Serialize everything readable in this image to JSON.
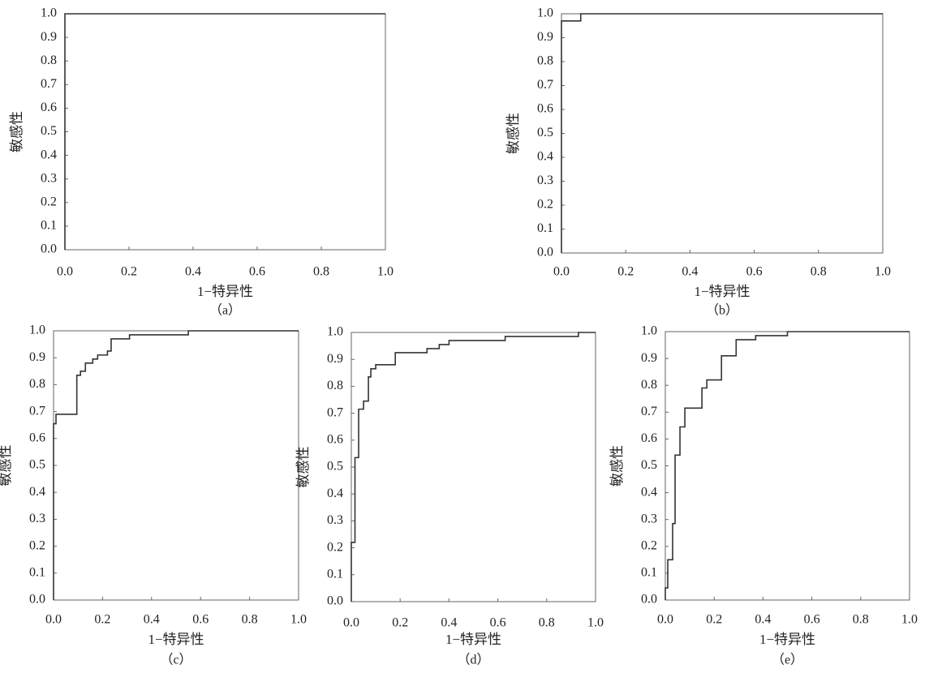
{
  "chart_data": [
    {
      "type": "line",
      "xlabel": "1−特异性",
      "ylabel": "敏感性",
      "caption": "（a）",
      "color": "#333333",
      "x": [
        0,
        0,
        1
      ],
      "values": [
        0,
        1,
        1
      ],
      "xlim": [
        0,
        1
      ],
      "ylim": [
        0,
        1
      ],
      "xticks": [
        {
          "value": 0,
          "label": "0.0"
        },
        0.2,
        0.4,
        0.6,
        0.8,
        {
          "value": 1,
          "label": "1.0"
        }
      ],
      "yticks": [
        {
          "value": 0,
          "label": "0.0"
        },
        0.1,
        0.2,
        0.3,
        0.4,
        0.5,
        0.6,
        0.7,
        0.8,
        0.9,
        {
          "value": 1,
          "label": "1.0"
        }
      ]
    },
    {
      "type": "line",
      "xlabel": "1−特异性",
      "ylabel": "敏感性",
      "caption": "（b）",
      "color": "#333333",
      "x": [
        0,
        0,
        0.06,
        0.06,
        1
      ],
      "values": [
        0,
        0.97,
        0.97,
        1,
        1
      ],
      "xlim": [
        0,
        1
      ],
      "ylim": [
        0,
        1
      ],
      "xticks": [
        {
          "value": 0,
          "label": "0.0"
        },
        0.2,
        0.4,
        0.6,
        0.8,
        {
          "value": 1,
          "label": "1.0"
        }
      ],
      "yticks": [
        {
          "value": 0,
          "label": "0.0"
        },
        0.1,
        0.2,
        0.3,
        0.4,
        0.5,
        0.6,
        0.7,
        0.8,
        0.9,
        {
          "value": 1,
          "label": "1.0"
        }
      ]
    },
    {
      "type": "line",
      "xlabel": "1−特异性",
      "ylabel": "敏感性",
      "caption": "（c）",
      "color": "#333333",
      "x": [
        0,
        0,
        0.01,
        0.01,
        0.095,
        0.095,
        0.11,
        0.11,
        0.13,
        0.13,
        0.16,
        0.16,
        0.18,
        0.18,
        0.22,
        0.22,
        0.235,
        0.235,
        0.31,
        0.31,
        0.55,
        0.55,
        1
      ],
      "values": [
        0,
        0.655,
        0.655,
        0.69,
        0.69,
        0.835,
        0.835,
        0.85,
        0.85,
        0.88,
        0.88,
        0.895,
        0.895,
        0.91,
        0.91,
        0.925,
        0.925,
        0.97,
        0.97,
        0.985,
        0.985,
        1,
        1
      ],
      "xlim": [
        0,
        1
      ],
      "ylim": [
        0,
        1
      ],
      "xticks": [
        {
          "value": 0,
          "label": "0.0"
        },
        0.2,
        0.4,
        0.6,
        0.8,
        {
          "value": 1,
          "label": "1.0"
        }
      ],
      "yticks": [
        {
          "value": 0,
          "label": "0.0"
        },
        0.1,
        0.2,
        0.3,
        0.4,
        0.5,
        0.6,
        0.7,
        0.8,
        0.9,
        {
          "value": 1,
          "label": "1.0"
        }
      ]
    },
    {
      "type": "line",
      "xlabel": "1−特异性",
      "ylabel": "敏感性",
      "caption": "（d）",
      "color": "#333333",
      "x": [
        0,
        0,
        0.015,
        0.015,
        0.03,
        0.03,
        0.05,
        0.05,
        0.07,
        0.07,
        0.08,
        0.08,
        0.1,
        0.1,
        0.18,
        0.18,
        0.31,
        0.31,
        0.36,
        0.36,
        0.4,
        0.4,
        0.63,
        0.63,
        0.93,
        0.93,
        1
      ],
      "values": [
        0,
        0.22,
        0.22,
        0.535,
        0.535,
        0.715,
        0.715,
        0.745,
        0.745,
        0.835,
        0.835,
        0.865,
        0.865,
        0.88,
        0.88,
        0.925,
        0.925,
        0.94,
        0.94,
        0.955,
        0.955,
        0.97,
        0.97,
        0.985,
        0.985,
        1,
        1
      ],
      "xlim": [
        0,
        1
      ],
      "ylim": [
        0,
        1
      ],
      "xticks": [
        {
          "value": 0,
          "label": "0.0"
        },
        0.2,
        0.4,
        0.6,
        0.8,
        {
          "value": 1,
          "label": "1.0"
        }
      ],
      "yticks": [
        {
          "value": 0,
          "label": "0.0"
        },
        0.1,
        0.2,
        0.3,
        0.4,
        0.5,
        0.6,
        0.7,
        0.8,
        0.9,
        {
          "value": 1,
          "label": "1.0"
        }
      ]
    },
    {
      "type": "line",
      "xlabel": "1−特异性",
      "ylabel": "敏感性",
      "caption": "（e）",
      "color": "#333333",
      "x": [
        0,
        0,
        0.01,
        0.01,
        0.03,
        0.03,
        0.04,
        0.04,
        0.06,
        0.06,
        0.08,
        0.08,
        0.15,
        0.15,
        0.17,
        0.17,
        0.23,
        0.23,
        0.29,
        0.29,
        0.37,
        0.37,
        0.5,
        0.5,
        1
      ],
      "values": [
        0,
        0.045,
        0.045,
        0.15,
        0.15,
        0.285,
        0.285,
        0.54,
        0.54,
        0.645,
        0.645,
        0.715,
        0.715,
        0.79,
        0.79,
        0.82,
        0.82,
        0.91,
        0.91,
        0.97,
        0.97,
        0.985,
        0.985,
        1,
        1
      ],
      "xlim": [
        0,
        1
      ],
      "ylim": [
        0,
        1
      ],
      "xticks": [
        {
          "value": 0,
          "label": "0.0"
        },
        0.2,
        0.4,
        0.6,
        0.8,
        {
          "value": 1,
          "label": "1.0"
        }
      ],
      "yticks": [
        {
          "value": 0,
          "label": "0.0"
        },
        0.1,
        0.2,
        0.3,
        0.4,
        0.5,
        0.6,
        0.7,
        0.8,
        0.9,
        {
          "value": 1,
          "label": "1.0"
        }
      ]
    }
  ]
}
